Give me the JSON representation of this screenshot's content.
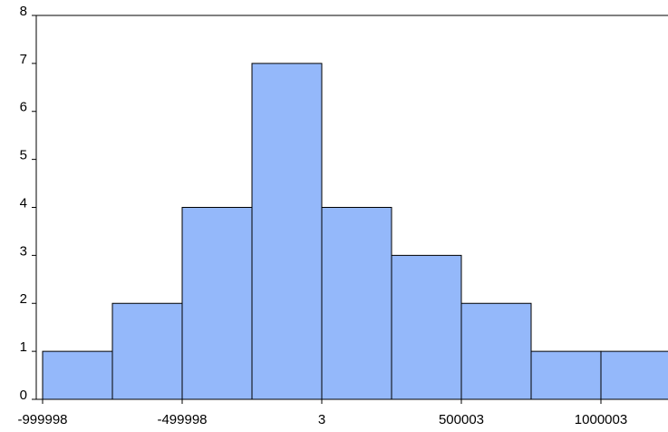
{
  "chart_data": {
    "type": "histogram",
    "bins": [
      -1000000,
      -750000,
      -500000,
      -250000,
      0,
      250000,
      500000,
      750000,
      1000000,
      1250000
    ],
    "values": [
      1,
      2,
      4,
      7,
      4,
      3,
      2,
      1,
      1
    ],
    "color": "#94b8fa",
    "xlim": [
      -1022727,
      1240262
    ],
    "xticks": [
      -999998,
      -499998,
      3,
      500003,
      1000003
    ],
    "ylim": [
      0,
      8
    ],
    "yticks": [
      0,
      1,
      2,
      3,
      4,
      5,
      6,
      7,
      8
    ]
  }
}
